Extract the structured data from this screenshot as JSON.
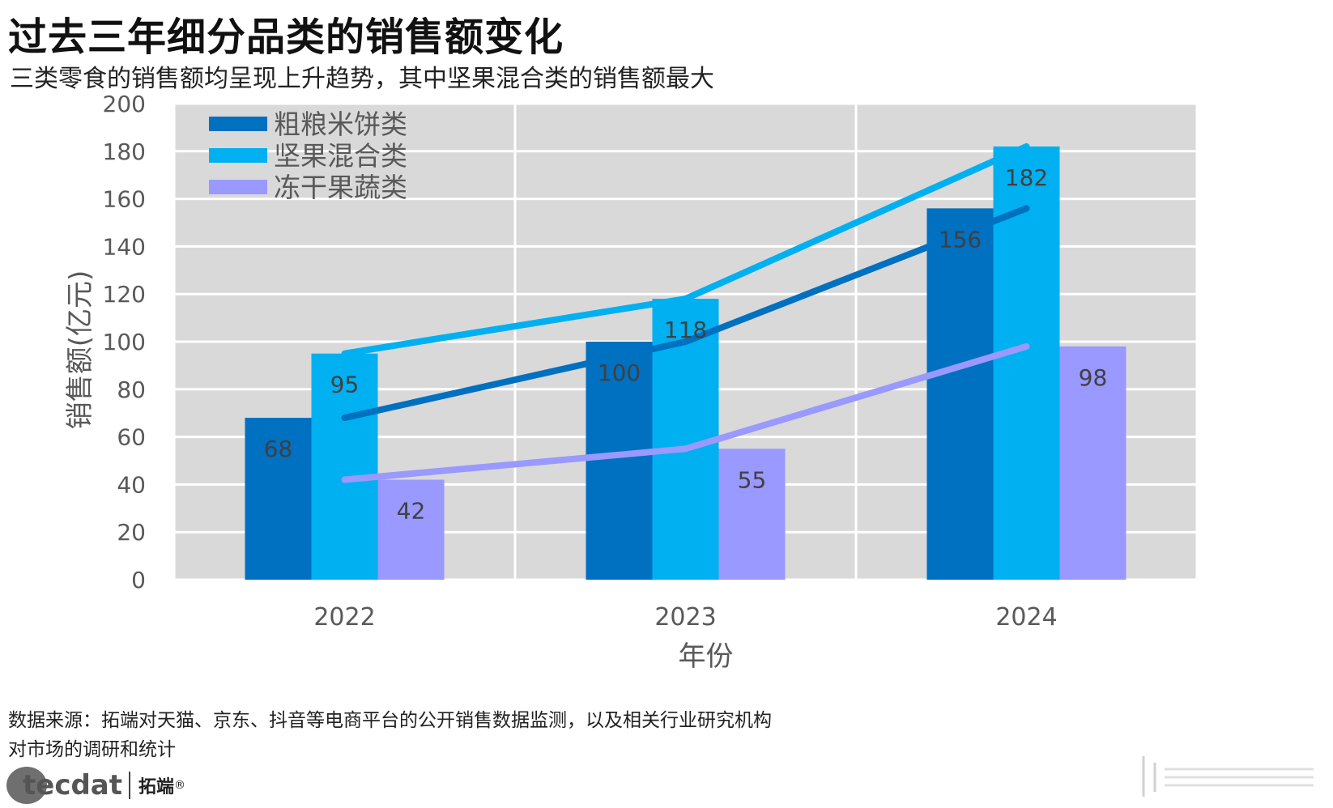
{
  "title": "过去三年细分品类的销售额变化",
  "subtitle": "三类零食的销售额均呈现上升趋势，其中坚果混合类的销售额最大",
  "source": "数据来源：拓端对天猫、京东、抖音等电商平台的公开销售数据监测，以及相关行业研究机构对市场的调研和统计",
  "logo": {
    "brand_en": "tecdat",
    "brand_cn": "拓端",
    "reg": "®"
  },
  "colors": {
    "plot_bg": "#d9d9d9",
    "grid": "#ffffff",
    "axis_text": "#595959",
    "label_text": "#404040"
  },
  "chart_data": {
    "type": "bar",
    "title": "过去三年细分品类的销售额变化",
    "xlabel": "年份",
    "ylabel": "销售额(亿元)",
    "ylim": [
      0,
      200
    ],
    "yticks": [
      0,
      20,
      40,
      60,
      80,
      100,
      120,
      140,
      160,
      180,
      200
    ],
    "categories": [
      "2022",
      "2023",
      "2024"
    ],
    "legend_position": "top-left",
    "series": [
      {
        "name": "粗粮米饼类",
        "values": [
          68,
          100,
          156
        ],
        "color": "#0070c0"
      },
      {
        "name": "坚果混合类",
        "values": [
          95,
          118,
          182
        ],
        "color": "#00b0f0"
      },
      {
        "name": "冻干果蔬类",
        "values": [
          42,
          55,
          98
        ],
        "color": "#9999ff"
      }
    ],
    "trend_lines": "each series also drawn as a line through category centers"
  }
}
